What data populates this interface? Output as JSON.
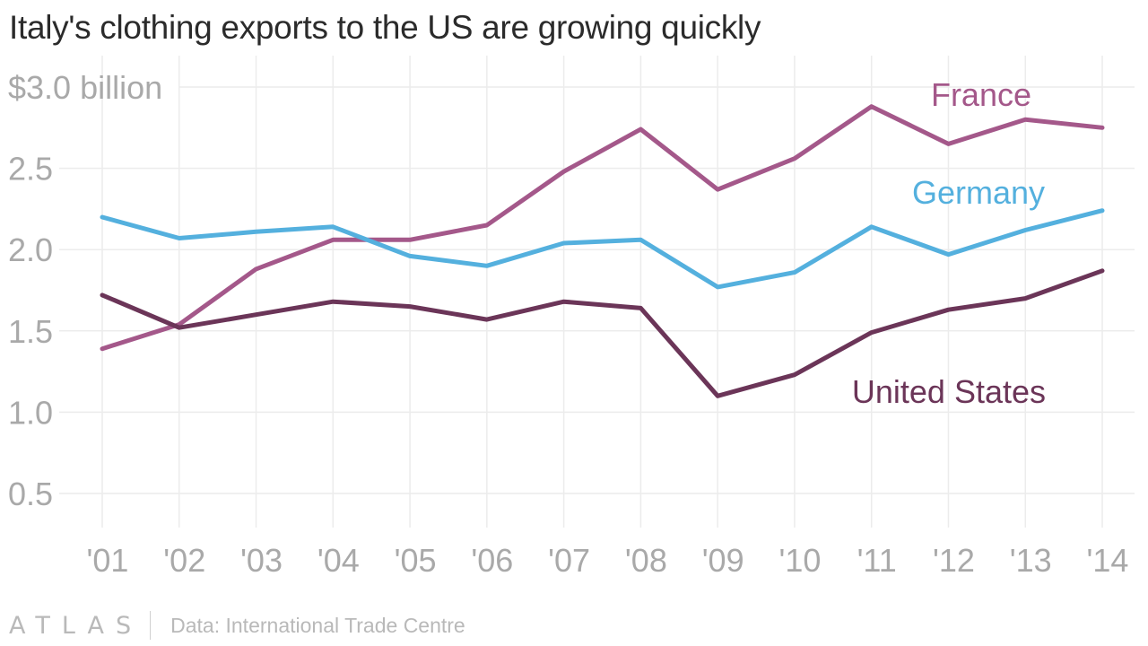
{
  "title": "Italy's clothing exports to the US are growing quickly",
  "footer": {
    "logo_text": "ATLAS",
    "source": "Data: International Trade Centre"
  },
  "chart_data": {
    "type": "line",
    "title": "Italy's clothing exports to the US are growing quickly",
    "xlabel": "",
    "ylabel": "",
    "x": [
      "'01",
      "'02",
      "'03",
      "'04",
      "'05",
      "'06",
      "'07",
      "'08",
      "'09",
      "'10",
      "'11",
      "'12",
      "'13",
      "'14"
    ],
    "y_ticks": [
      {
        "value": 0.5,
        "label": "0.5"
      },
      {
        "value": 1.0,
        "label": "1.0"
      },
      {
        "value": 1.5,
        "label": "1.5"
      },
      {
        "value": 2.0,
        "label": "2.0"
      },
      {
        "value": 2.5,
        "label": "2.5"
      },
      {
        "value": 3.0,
        "label": "$3.0 billion"
      }
    ],
    "ylim": [
      0.5,
      3.0
    ],
    "grid": true,
    "legend": "direct labels on series",
    "series": [
      {
        "name": "France",
        "color": "#a4588a",
        "values": [
          1.39,
          1.54,
          1.88,
          2.06,
          2.06,
          2.15,
          2.48,
          2.74,
          2.37,
          2.56,
          2.88,
          2.65,
          2.8,
          2.75
        ]
      },
      {
        "name": "Germany",
        "color": "#54b0de",
        "values": [
          2.2,
          2.07,
          2.11,
          2.14,
          1.96,
          1.9,
          2.04,
          2.06,
          1.77,
          1.86,
          2.14,
          1.97,
          2.12,
          2.24
        ]
      },
      {
        "name": "United States",
        "color": "#6b3558",
        "values": [
          1.72,
          1.52,
          1.6,
          1.68,
          1.65,
          1.57,
          1.68,
          1.64,
          1.1,
          1.23,
          1.49,
          1.63,
          1.7,
          1.87
        ]
      }
    ]
  }
}
